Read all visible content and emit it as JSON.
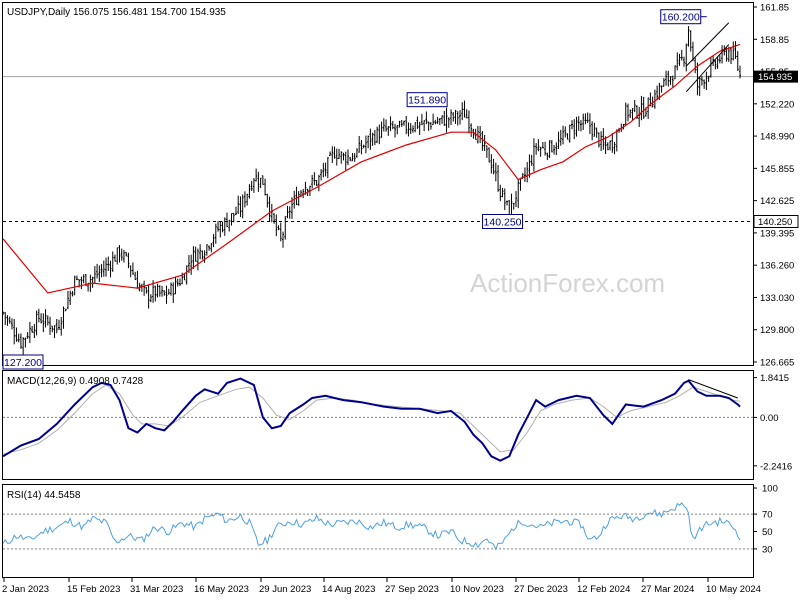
{
  "chart_data": [
    {
      "type": "candlestick",
      "header": "USDJPY,Daily  156.075 156.481 154.700 154.935",
      "price_ticks": [
        "161.85",
        "158.85",
        "155.85",
        "152.220",
        "148.990",
        "145.855",
        "142.625",
        "139.395",
        "136.260",
        "133.030",
        "129.800",
        "126.665"
      ],
      "ylim": [
        125.6,
        162.4
      ],
      "current_price_label": "154.935",
      "current_price": 154.935,
      "support_label": "140.250",
      "support": 140.25,
      "annotations": [
        {
          "text": "160.200",
          "date": "2024-04-29",
          "value": 160.2
        },
        {
          "text": "151.890",
          "date": "2023-10-31",
          "value": 151.89
        },
        {
          "text": "140.250",
          "date": "2024-01-02",
          "value": 140.25
        },
        {
          "text": "127.200",
          "date": "2023-01-16",
          "value": 127.2
        }
      ],
      "x_ticks": [
        "2 Jan 2023",
        "15 Feb 2023",
        "31 Mar 2023",
        "16 May 2023",
        "29 Jun 2023",
        "14 Aug 2023",
        "27 Sep 2023",
        "10 Nov 2023",
        "27 Dec 2023",
        "12 Feb 2024",
        "27 Mar 2024",
        "10 May 2024"
      ],
      "close_path": [
        [
          0,
          131
        ],
        [
          8,
          128
        ],
        [
          16,
          130.5
        ],
        [
          24,
          129.4
        ],
        [
          32,
          134.2
        ],
        [
          40,
          134.5
        ],
        [
          48,
          136.1
        ],
        [
          52,
          137.2
        ],
        [
          56,
          136
        ],
        [
          60,
          134
        ],
        [
          64,
          132.7
        ],
        [
          68,
          133.1
        ],
        [
          72,
          132.7
        ],
        [
          76,
          133.5
        ],
        [
          80,
          134.5
        ],
        [
          84,
          136.6
        ],
        [
          90,
          137.5
        ],
        [
          96,
          139.5
        ],
        [
          100,
          140.3
        ],
        [
          106,
          141.6
        ],
        [
          112,
          144.8
        ],
        [
          116,
          144.3
        ],
        [
          120,
          140.6
        ],
        [
          124,
          138.3
        ],
        [
          128,
          141.5
        ],
        [
          134,
          143.8
        ],
        [
          140,
          144.3
        ],
        [
          144,
          145.6
        ],
        [
          148,
          147.3
        ],
        [
          152,
          146.8
        ],
        [
          156,
          146.8
        ],
        [
          164,
          148.7
        ],
        [
          170,
          149.5
        ],
        [
          178,
          149.7
        ],
        [
          184,
          150.1
        ],
        [
          190,
          150.2
        ],
        [
          198,
          150.6
        ],
        [
          206,
          151.2
        ],
        [
          210,
          149.7
        ],
        [
          214,
          147.9
        ],
        [
          218,
          146.2
        ],
        [
          222,
          143.3
        ],
        [
          226,
          141.2
        ],
        [
          230,
          143.5
        ],
        [
          234,
          145.4
        ],
        [
          238,
          147.9
        ],
        [
          242,
          147.5
        ],
        [
          248,
          148.2
        ],
        [
          256,
          150.2
        ],
        [
          262,
          150
        ],
        [
          268,
          147.8
        ],
        [
          272,
          148.2
        ],
        [
          278,
          151.3
        ],
        [
          286,
          151.5
        ],
        [
          294,
          154
        ],
        [
          300,
          155.5
        ],
        [
          304,
          157
        ],
        [
          306,
          159.8
        ],
        [
          308,
          156.5
        ],
        [
          310,
          154
        ],
        [
          312,
          154.6
        ],
        [
          316,
          155.7
        ],
        [
          320,
          156.8
        ],
        [
          324,
          157.5
        ],
        [
          327,
          156.7
        ],
        [
          329,
          155
        ]
      ],
      "ma_label": "moving average",
      "ma_path": [
        [
          0,
          138.5
        ],
        [
          20,
          133
        ],
        [
          40,
          134
        ],
        [
          60,
          133.5
        ],
        [
          80,
          134.8
        ],
        [
          100,
          138
        ],
        [
          120,
          141.3
        ],
        [
          140,
          143.7
        ],
        [
          160,
          146.3
        ],
        [
          180,
          148
        ],
        [
          200,
          149.3
        ],
        [
          210,
          149.3
        ],
        [
          220,
          147.5
        ],
        [
          230,
          144.5
        ],
        [
          240,
          145.5
        ],
        [
          250,
          146.3
        ],
        [
          260,
          147.8
        ],
        [
          270,
          148.8
        ],
        [
          280,
          150.3
        ],
        [
          290,
          152.3
        ],
        [
          300,
          154
        ],
        [
          310,
          156
        ],
        [
          320,
          157.5
        ],
        [
          329,
          158.2
        ]
      ],
      "trendlines": [
        {
          "from": [
            305,
            156
          ],
          "to": [
            324,
            160.4
          ]
        },
        {
          "from": [
            305,
            153.4
          ],
          "to": [
            324,
            158.2
          ]
        }
      ]
    },
    {
      "type": "line",
      "title": "MACD(12,26,9) 0.4908 0.7428",
      "y_ticks": [
        "1.8415",
        "0.00",
        "-2.2416"
      ],
      "ylim": [
        -2.9,
        2.15
      ],
      "zero": 0,
      "macd_label": "MACD line",
      "macd": [
        [
          0,
          -1.8
        ],
        [
          8,
          -1.3
        ],
        [
          16,
          -1
        ],
        [
          24,
          -0.3
        ],
        [
          32,
          0.6
        ],
        [
          40,
          1.4
        ],
        [
          44,
          1.6
        ],
        [
          48,
          1.5
        ],
        [
          52,
          0.8
        ],
        [
          56,
          -0.5
        ],
        [
          60,
          -0.7
        ],
        [
          64,
          -0.3
        ],
        [
          68,
          -0.5
        ],
        [
          72,
          -0.6
        ],
        [
          76,
          -0.2
        ],
        [
          80,
          0.3
        ],
        [
          86,
          1.0
        ],
        [
          90,
          1.3
        ],
        [
          96,
          1.1
        ],
        [
          100,
          1.6
        ],
        [
          106,
          1.8
        ],
        [
          112,
          1.5
        ],
        [
          116,
          0
        ],
        [
          120,
          -0.5
        ],
        [
          124,
          -0.4
        ],
        [
          128,
          0.2
        ],
        [
          134,
          0.6
        ],
        [
          138,
          0.9
        ],
        [
          144,
          1.0
        ],
        [
          148,
          0.9
        ],
        [
          152,
          0.8
        ],
        [
          160,
          0.7
        ],
        [
          170,
          0.5
        ],
        [
          178,
          0.4
        ],
        [
          186,
          0.4
        ],
        [
          194,
          0.2
        ],
        [
          200,
          0.3
        ],
        [
          206,
          -0.2
        ],
        [
          210,
          -0.8
        ],
        [
          214,
          -1.2
        ],
        [
          218,
          -1.8
        ],
        [
          222,
          -2
        ],
        [
          226,
          -1.8
        ],
        [
          230,
          -0.8
        ],
        [
          234,
          0
        ],
        [
          238,
          0.8
        ],
        [
          242,
          0.5
        ],
        [
          248,
          0.8
        ],
        [
          256,
          1.0
        ],
        [
          262,
          0.9
        ],
        [
          268,
          0.1
        ],
        [
          272,
          -0.3
        ],
        [
          278,
          0.6
        ],
        [
          286,
          0.5
        ],
        [
          294,
          0.8
        ],
        [
          300,
          1.1
        ],
        [
          304,
          1.6
        ],
        [
          306,
          1.7
        ],
        [
          310,
          1.2
        ],
        [
          314,
          1.0
        ],
        [
          320,
          1.0
        ],
        [
          324,
          0.9
        ],
        [
          328,
          0.6
        ],
        [
          329,
          0.5
        ]
      ],
      "signal_label": "signal line",
      "signal": [
        [
          0,
          -1.7
        ],
        [
          8,
          -1.5
        ],
        [
          16,
          -1.2
        ],
        [
          24,
          -0.6
        ],
        [
          32,
          0.2
        ],
        [
          40,
          1.1
        ],
        [
          46,
          1.5
        ],
        [
          52,
          1.1
        ],
        [
          58,
          0.1
        ],
        [
          62,
          -0.3
        ],
        [
          68,
          -0.3
        ],
        [
          74,
          -0.4
        ],
        [
          80,
          0.0
        ],
        [
          88,
          0.7
        ],
        [
          96,
          1.0
        ],
        [
          104,
          1.3
        ],
        [
          110,
          1.4
        ],
        [
          116,
          0.9
        ],
        [
          122,
          0.1
        ],
        [
          128,
          -0.1
        ],
        [
          134,
          0.3
        ],
        [
          140,
          0.8
        ],
        [
          148,
          0.9
        ],
        [
          156,
          0.8
        ],
        [
          166,
          0.6
        ],
        [
          176,
          0.5
        ],
        [
          186,
          0.4
        ],
        [
          196,
          0.3
        ],
        [
          204,
          0.2
        ],
        [
          210,
          -0.4
        ],
        [
          216,
          -1.0
        ],
        [
          222,
          -1.6
        ],
        [
          228,
          -1.5
        ],
        [
          234,
          -0.7
        ],
        [
          240,
          0.3
        ],
        [
          246,
          0.6
        ],
        [
          254,
          0.8
        ],
        [
          262,
          0.9
        ],
        [
          268,
          0.5
        ],
        [
          274,
          0.0
        ],
        [
          280,
          0.3
        ],
        [
          288,
          0.5
        ],
        [
          296,
          0.7
        ],
        [
          302,
          1.0
        ],
        [
          308,
          1.4
        ],
        [
          314,
          1.2
        ],
        [
          320,
          1.0
        ],
        [
          326,
          0.8
        ],
        [
          329,
          0.74
        ]
      ],
      "trendline": {
        "from": [
          306,
          1.75
        ],
        "to": [
          328,
          0.9
        ]
      }
    },
    {
      "type": "line",
      "title": "RSI(14) 44.5458",
      "y_ticks": [
        "100",
        "70",
        "50",
        "30"
      ],
      "ylim": [
        0,
        100
      ],
      "levels": [
        70,
        30
      ],
      "rsi": [
        [
          0,
          35
        ],
        [
          6,
          45
        ],
        [
          12,
          40
        ],
        [
          18,
          50
        ],
        [
          24,
          55
        ],
        [
          30,
          62
        ],
        [
          36,
          55
        ],
        [
          40,
          65
        ],
        [
          46,
          60
        ],
        [
          50,
          38
        ],
        [
          56,
          45
        ],
        [
          62,
          40
        ],
        [
          68,
          55
        ],
        [
          74,
          50
        ],
        [
          80,
          60
        ],
        [
          86,
          55
        ],
        [
          90,
          65
        ],
        [
          96,
          70
        ],
        [
          100,
          62
        ],
        [
          106,
          68
        ],
        [
          110,
          60
        ],
        [
          114,
          35
        ],
        [
          118,
          40
        ],
        [
          122,
          55
        ],
        [
          128,
          62
        ],
        [
          134,
          58
        ],
        [
          140,
          65
        ],
        [
          146,
          58
        ],
        [
          152,
          60
        ],
        [
          158,
          62
        ],
        [
          164,
          55
        ],
        [
          170,
          60
        ],
        [
          176,
          55
        ],
        [
          182,
          58
        ],
        [
          188,
          54
        ],
        [
          194,
          45
        ],
        [
          200,
          50
        ],
        [
          204,
          40
        ],
        [
          208,
          38
        ],
        [
          212,
          35
        ],
        [
          216,
          42
        ],
        [
          220,
          30
        ],
        [
          224,
          40
        ],
        [
          228,
          55
        ],
        [
          232,
          62
        ],
        [
          236,
          58
        ],
        [
          240,
          55
        ],
        [
          246,
          60
        ],
        [
          252,
          62
        ],
        [
          258,
          58
        ],
        [
          262,
          40
        ],
        [
          266,
          45
        ],
        [
          270,
          62
        ],
        [
          276,
          68
        ],
        [
          282,
          65
        ],
        [
          288,
          72
        ],
        [
          294,
          70
        ],
        [
          300,
          78
        ],
        [
          304,
          82
        ],
        [
          306,
          70
        ],
        [
          308,
          40
        ],
        [
          312,
          55
        ],
        [
          316,
          60
        ],
        [
          322,
          62
        ],
        [
          326,
          55
        ],
        [
          329,
          44.5
        ]
      ]
    }
  ],
  "watermark": "ActionForex.com",
  "colors": {
    "candle": "#000000",
    "ma": "#e00000",
    "macd": "#00008b",
    "signal": "#b0b0b0",
    "rsi": "#4fa0e0",
    "annotation": "#000080",
    "grid": "#808080"
  }
}
